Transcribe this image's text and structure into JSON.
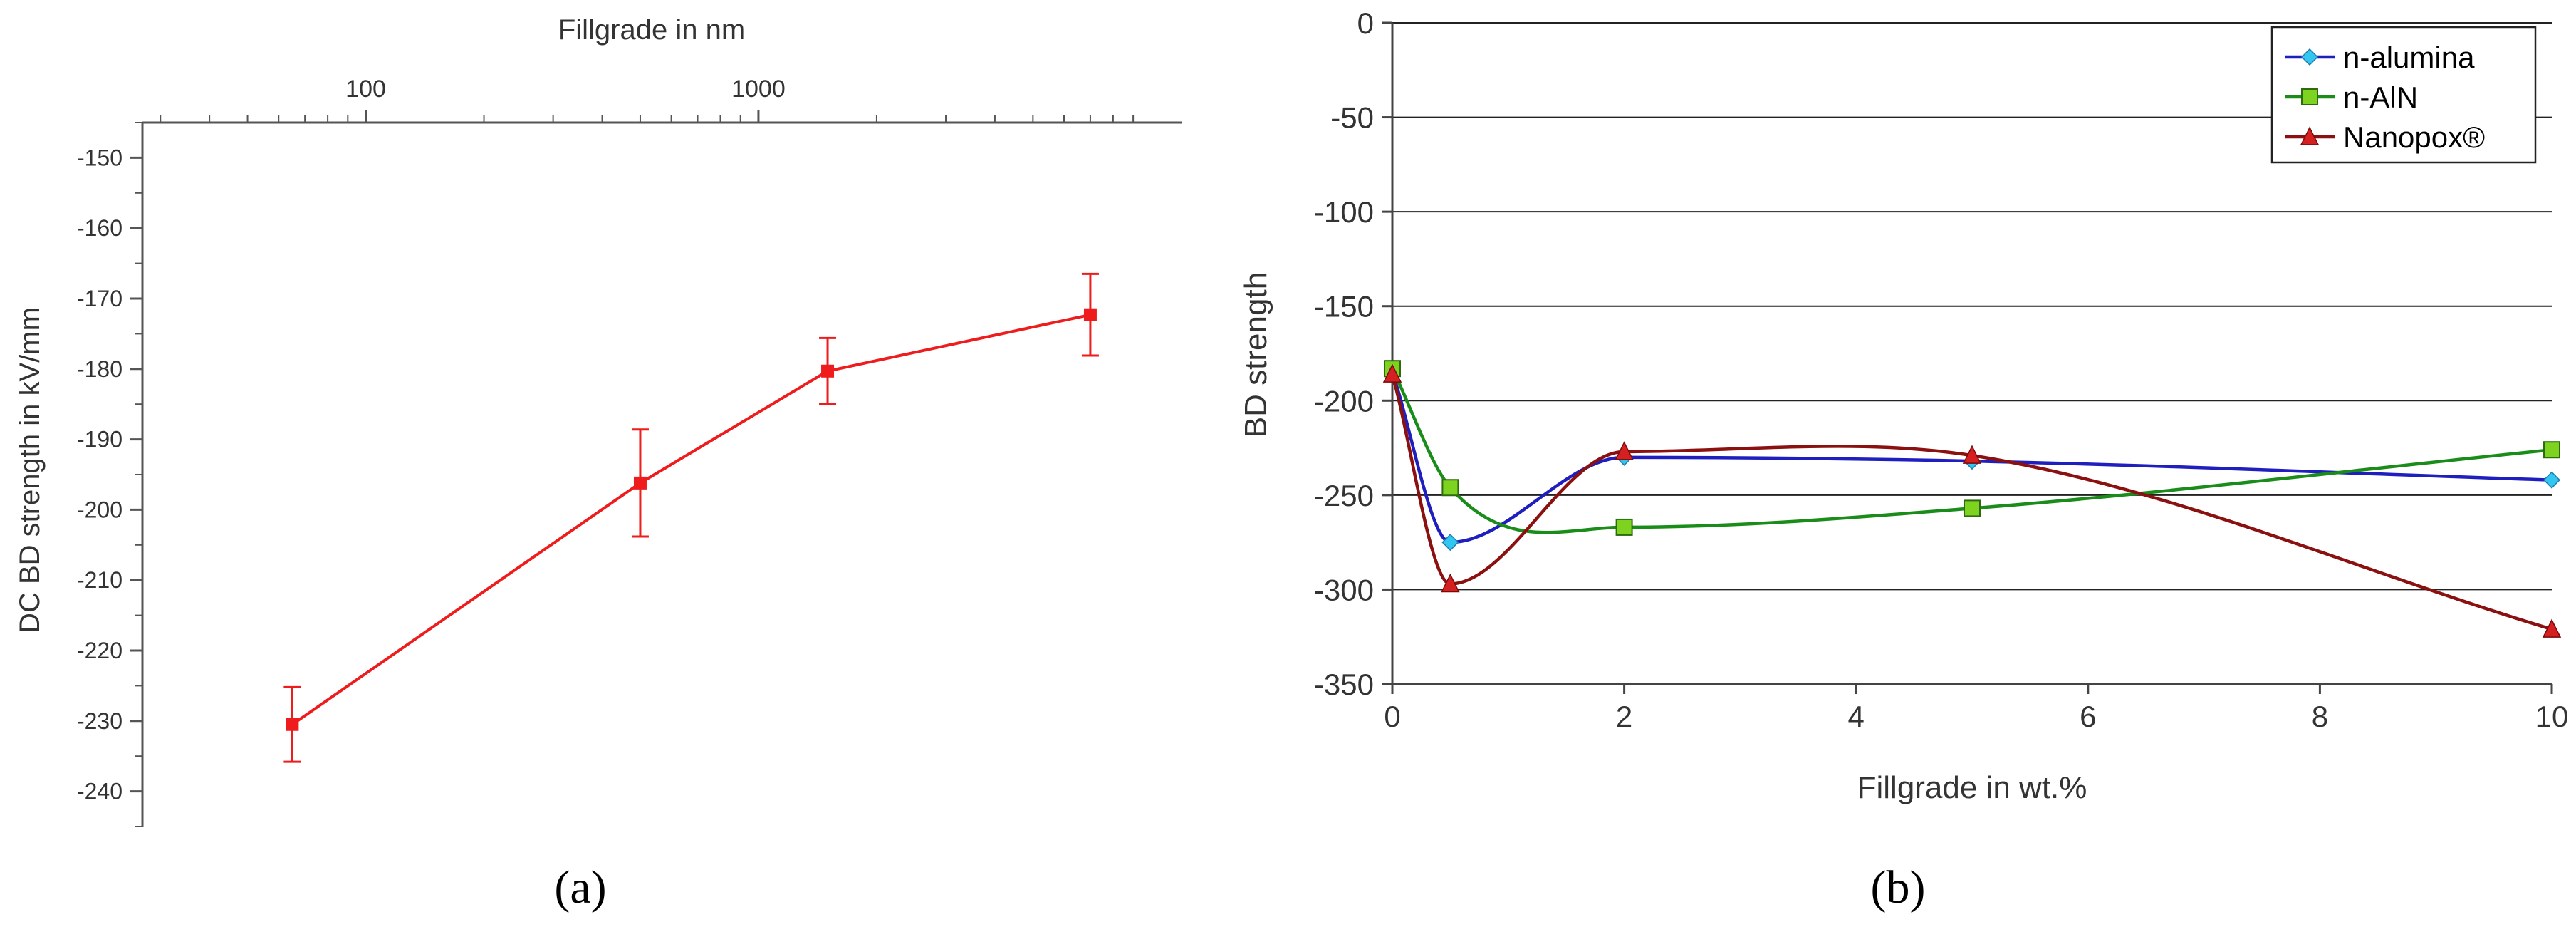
{
  "chart_data": [
    {
      "panel_label": "(a)",
      "type": "line",
      "xlabel": "Fillgrade in nm",
      "ylabel": "DC BD strength in kV/mm",
      "xscale": "log",
      "x_axis_position": "top",
      "xlim": [
        27,
        12000
      ],
      "ylim": [
        -245,
        -145
      ],
      "xticks": [
        100,
        1000
      ],
      "xtick_labels": [
        "100",
        "1000"
      ],
      "yticks": [
        -150,
        -160,
        -170,
        -180,
        -190,
        -200,
        -210,
        -220,
        -230,
        -240
      ],
      "ytick_labels": [
        "-150",
        "-160",
        "-170",
        "-180",
        "-190",
        "-200",
        "-210",
        "-220",
        "-230",
        "-240"
      ],
      "grid": false,
      "color": "#ee1c1c",
      "points": [
        {
          "x": 65,
          "y": -230.5,
          "err": 5.3
        },
        {
          "x": 500,
          "y": -196.2,
          "err": 7.6
        },
        {
          "x": 1500,
          "y": -180.3,
          "err": 4.7
        },
        {
          "x": 7000,
          "y": -172.3,
          "err": 5.8
        }
      ]
    },
    {
      "panel_label": "(b)",
      "type": "line",
      "xlabel": "Fillgrade in wt.%",
      "ylabel": "BD strength",
      "xlim": [
        0,
        10
      ],
      "ylim": [
        -350,
        0
      ],
      "xticks": [
        0,
        2,
        4,
        6,
        8,
        10
      ],
      "xtick_labels": [
        "0",
        "2",
        "4",
        "6",
        "8",
        "10"
      ],
      "yticks": [
        0,
        -50,
        -100,
        -150,
        -200,
        -250,
        -300,
        -350
      ],
      "ytick_labels": [
        "0",
        "-50",
        "-100",
        "-150",
        "-200",
        "-250",
        "-300",
        "-350"
      ],
      "grid": true,
      "legend_position": "top-right",
      "smooth": true,
      "series": [
        {
          "name": "n-alumina",
          "color": "#1f1fbf",
          "marker_color": "#33c6f0",
          "marker": "diamond",
          "x": [
            0,
            0.5,
            2,
            5,
            10
          ],
          "y": [
            -185,
            -275,
            -230,
            -232,
            -242
          ]
        },
        {
          "name": "n-AlN",
          "color": "#1a8c1a",
          "marker_color": "#7ed321",
          "marker": "square",
          "x": [
            0,
            0.5,
            2,
            5,
            10
          ],
          "y": [
            -183,
            -246,
            -267,
            -257,
            -226
          ]
        },
        {
          "name": "Nanopox®",
          "color": "#8b1010",
          "marker_color": "#d42020",
          "marker": "triangle",
          "x": [
            0,
            0.5,
            2,
            5,
            10
          ],
          "y": [
            -186,
            -297,
            -227,
            -229,
            -321
          ]
        }
      ]
    }
  ]
}
